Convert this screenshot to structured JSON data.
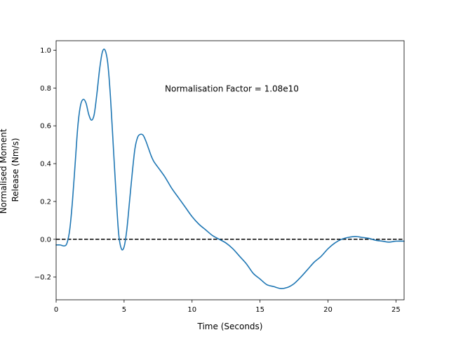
{
  "chart_data": {
    "type": "line",
    "title": "",
    "xlabel": "Time (Seconds)",
    "ylabel_lines": [
      "Normalised Moment",
      "Release (Nm/s)"
    ],
    "xlim": [
      0,
      25.6
    ],
    "ylim": [
      -0.32,
      1.05
    ],
    "xticks": [
      0,
      5,
      10,
      15,
      20,
      25
    ],
    "yticks": [
      -0.2,
      0.0,
      0.2,
      0.4,
      0.6,
      0.8,
      1.0
    ],
    "ytick_labels": [
      "−0.2",
      "0.0",
      "0.2",
      "0.4",
      "0.6",
      "0.8",
      "1.0"
    ],
    "grid": false,
    "annotation": {
      "text": "Normalisation Factor = 1.08e10",
      "x": 8.0,
      "y": 0.8
    },
    "reference_line": {
      "y": 0.0,
      "style": "dashed",
      "color": "#000000"
    },
    "series": [
      {
        "color": "#1f77b4",
        "x": [
          0,
          0.3,
          0.6,
          0.8,
          1.0,
          1.2,
          1.4,
          1.6,
          1.8,
          2.0,
          2.2,
          2.4,
          2.6,
          2.8,
          3.0,
          3.2,
          3.4,
          3.6,
          3.8,
          4.0,
          4.2,
          4.4,
          4.6,
          4.8,
          5.0,
          5.2,
          5.4,
          5.6,
          5.8,
          6.0,
          6.2,
          6.4,
          6.6,
          6.8,
          7.0,
          7.2,
          7.5,
          8.0,
          8.5,
          9.0,
          9.5,
          10.0,
          10.5,
          11.0,
          11.5,
          12.0,
          12.5,
          13.0,
          13.5,
          14.0,
          14.5,
          15.0,
          15.5,
          16.0,
          16.5,
          17.0,
          17.5,
          18.0,
          18.5,
          19.0,
          19.5,
          20.0,
          20.5,
          21.0,
          21.5,
          22.0,
          22.5,
          23.0,
          23.5,
          24.0,
          24.5,
          25.0,
          25.6
        ],
        "values": [
          -0.03,
          -0.03,
          -0.035,
          -0.02,
          0.05,
          0.2,
          0.4,
          0.6,
          0.71,
          0.74,
          0.72,
          0.66,
          0.63,
          0.66,
          0.77,
          0.9,
          0.99,
          1.0,
          0.93,
          0.75,
          0.5,
          0.25,
          0.03,
          -0.05,
          -0.04,
          0.05,
          0.2,
          0.35,
          0.48,
          0.54,
          0.555,
          0.55,
          0.52,
          0.48,
          0.44,
          0.41,
          0.38,
          0.33,
          0.27,
          0.22,
          0.17,
          0.12,
          0.08,
          0.05,
          0.02,
          0.0,
          -0.02,
          -0.05,
          -0.09,
          -0.13,
          -0.18,
          -0.21,
          -0.24,
          -0.25,
          -0.26,
          -0.255,
          -0.235,
          -0.2,
          -0.16,
          -0.12,
          -0.09,
          -0.05,
          -0.02,
          0.0,
          0.01,
          0.015,
          0.01,
          0.005,
          -0.005,
          -0.01,
          -0.015,
          -0.01,
          -0.01
        ]
      }
    ]
  }
}
